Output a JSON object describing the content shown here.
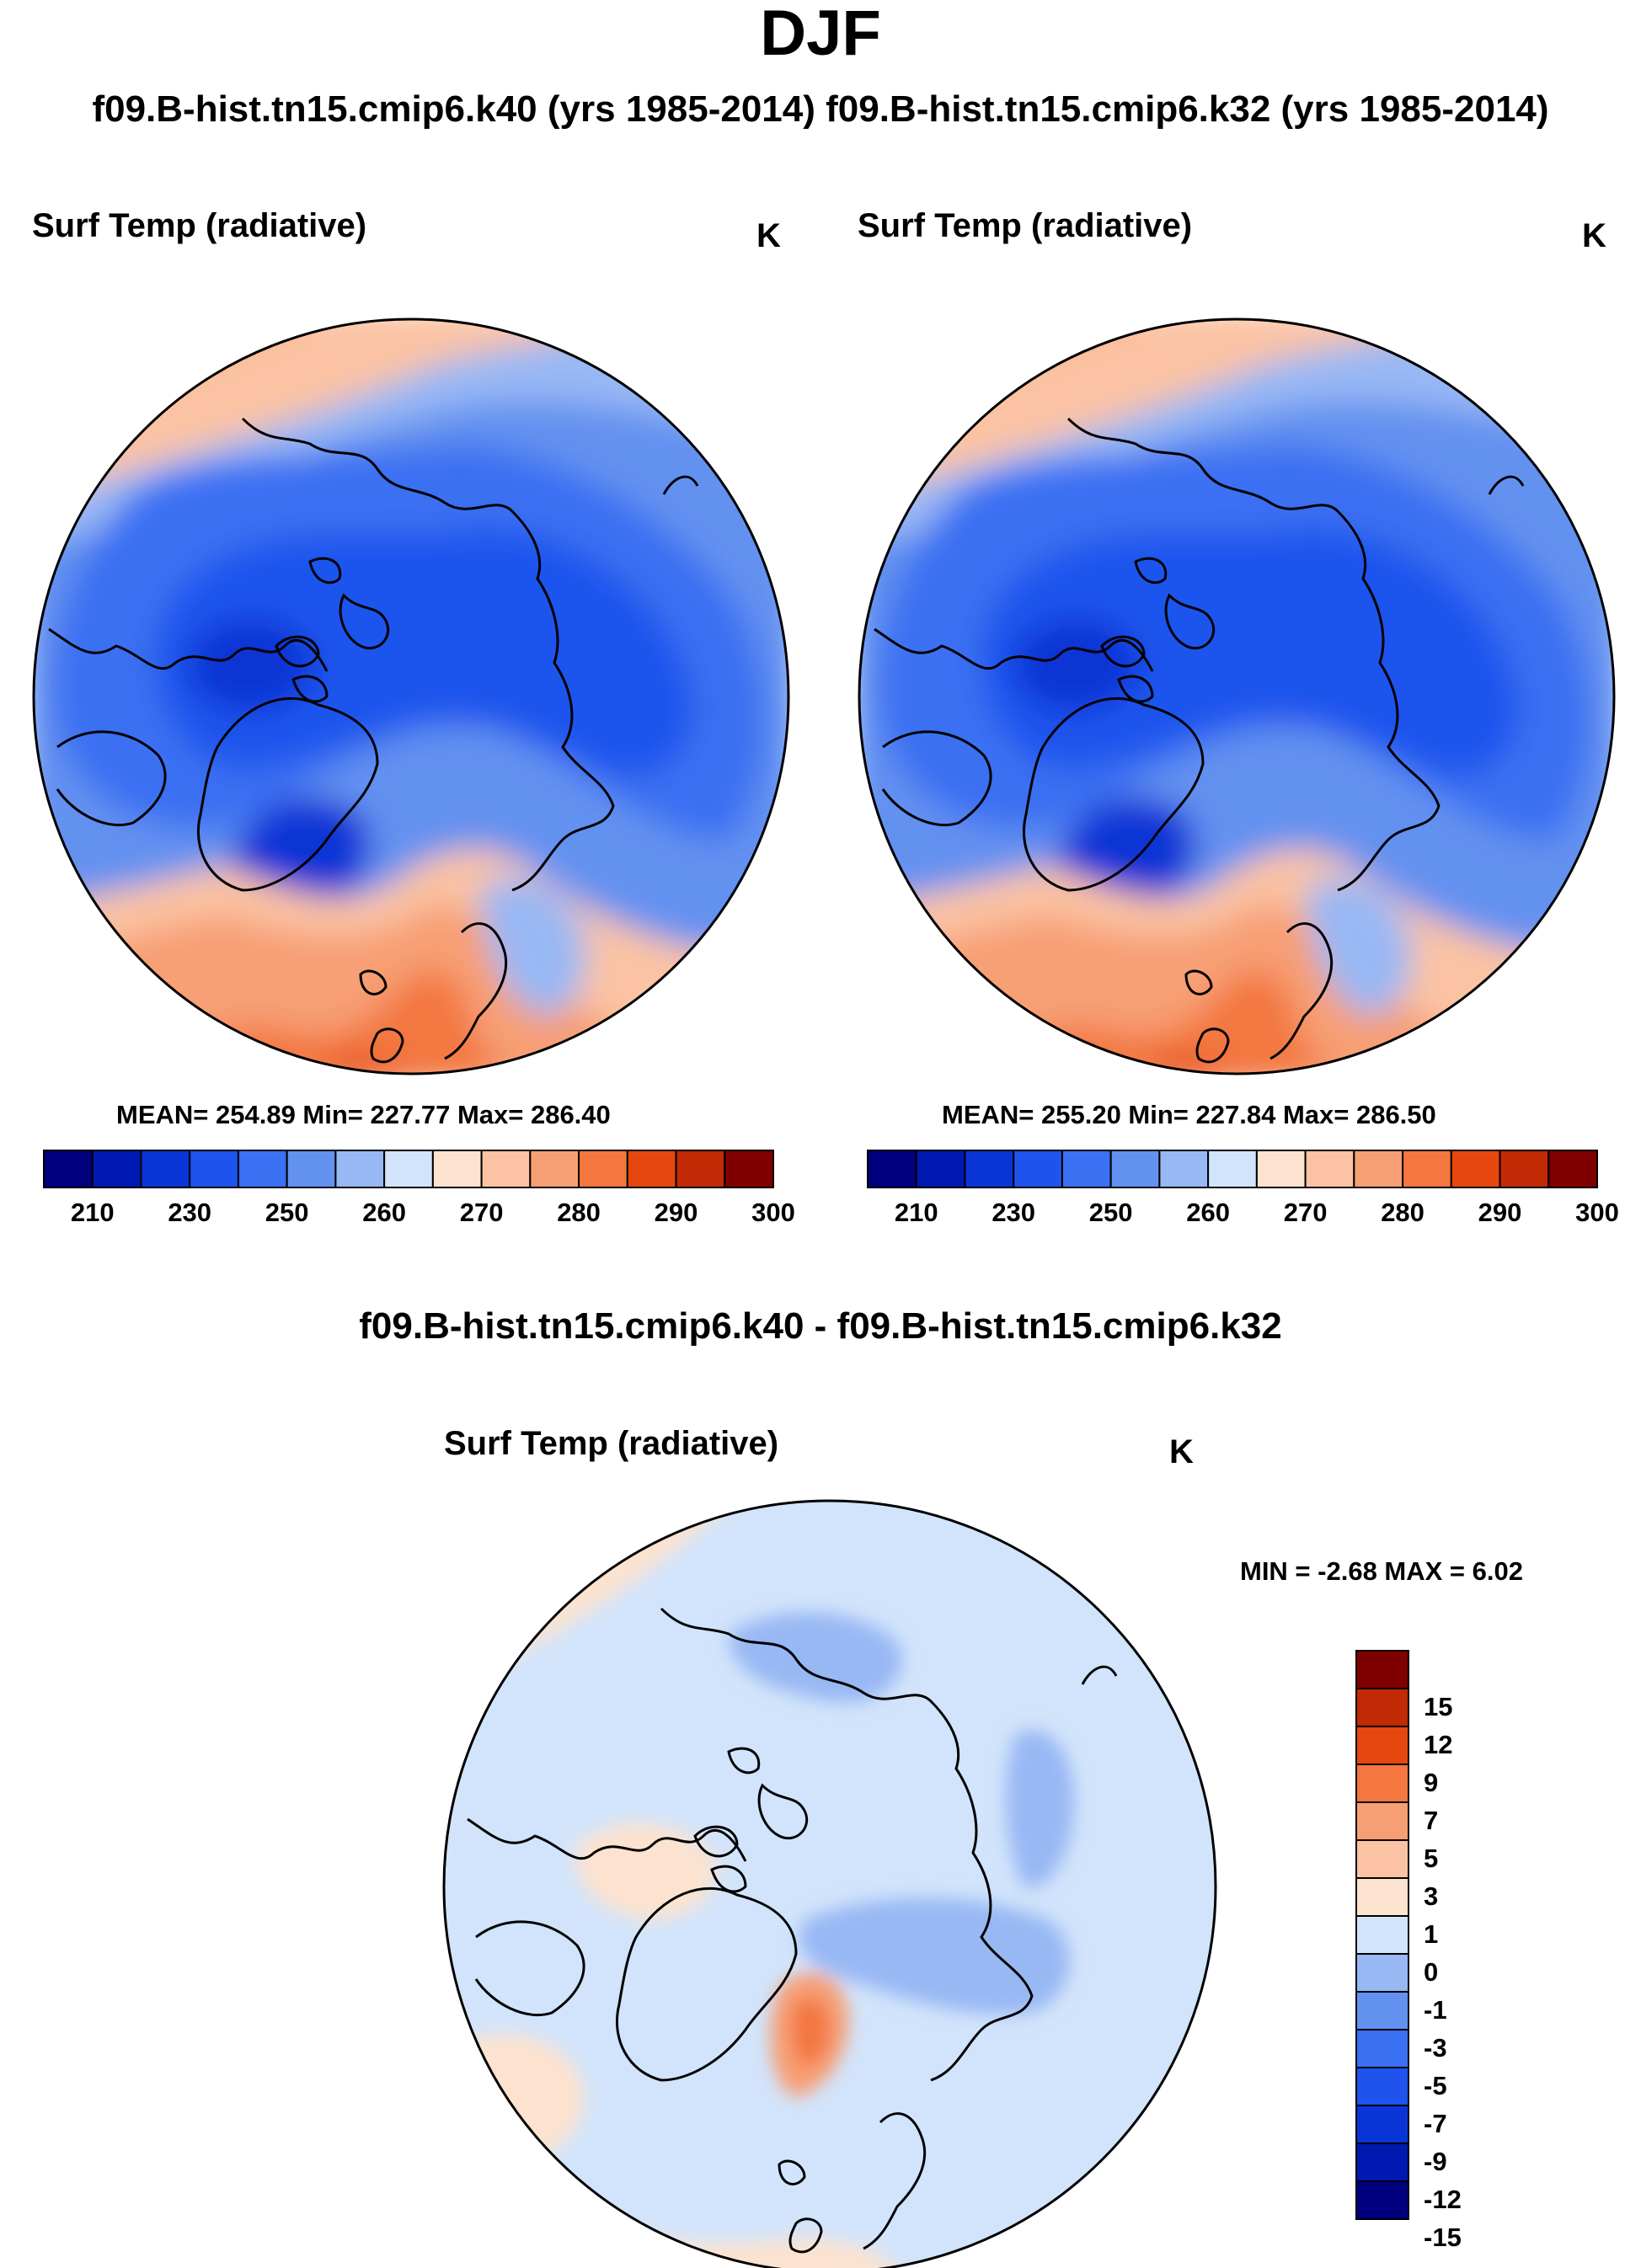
{
  "figure": {
    "title": "DJF",
    "case_header": "f09.B-hist.tn15.cmip6.k40 (yrs 1985-2014) f09.B-hist.tn15.cmip6.k32 (yrs 1985-2014)",
    "difference_title": "f09.B-hist.tn15.cmip6.k40 - f09.B-hist.tn15.cmip6.k32"
  },
  "panels": {
    "left": {
      "variable": "Surf Temp (radiative)",
      "units": "K",
      "stats": "MEAN= 254.89  Min= 227.77  Max= 286.40",
      "mean": 254.89,
      "min": 227.77,
      "max": 286.4
    },
    "right": {
      "variable": "Surf Temp (radiative)",
      "units": "K",
      "stats": "MEAN= 255.20  Min= 227.84  Max= 286.50",
      "mean": 255.2,
      "min": 227.84,
      "max": 286.5
    },
    "diff": {
      "variable": "Surf Temp (radiative)",
      "units": "K",
      "stats": "MIN =  -2.68 MAX =    6.02",
      "min": -2.68,
      "max": 6.02
    }
  },
  "abs_colorbar": {
    "colors": [
      "#00007f",
      "#0019b0",
      "#0a35d6",
      "#1e54ed",
      "#3a70f2",
      "#6391f0",
      "#98b8f4",
      "#d2e4fb",
      "#fde3cf",
      "#fbc3a3",
      "#f79f74",
      "#f3773f",
      "#e6470e",
      "#c22a06",
      "#7f0000"
    ],
    "tick_labels": [
      "210",
      "230",
      "250",
      "260",
      "270",
      "280",
      "290",
      "300"
    ]
  },
  "diff_colorbar": {
    "colors": [
      "#7f0000",
      "#c22a06",
      "#e6470e",
      "#f3773f",
      "#f79f74",
      "#fbc3a3",
      "#fde3cf",
      "#d2e4fb",
      "#98b8f4",
      "#6391f0",
      "#3a70f2",
      "#1e54ed",
      "#0a35d6",
      "#0019b0",
      "#00007f"
    ],
    "tick_labels": [
      "15",
      "12",
      "9",
      "7",
      "5",
      "3",
      "1",
      "0",
      "-1",
      "-3",
      "-5",
      "-7",
      "-9",
      "-12",
      "-15"
    ]
  },
  "chart_data": [
    {
      "type": "heatmap",
      "title": "Surf Temp (radiative)",
      "units": "K",
      "projection": "north polar stereographic",
      "season": "DJF",
      "case": "f09.B-hist.tn15.cmip6.k40 (yrs 1985-2014)",
      "mean": 254.89,
      "min": 227.77,
      "max": 286.4,
      "contour_levels": [
        210,
        220,
        230,
        240,
        250,
        255,
        260,
        265,
        270,
        275,
        280,
        285,
        290,
        295,
        300
      ]
    },
    {
      "type": "heatmap",
      "title": "Surf Temp (radiative)",
      "units": "K",
      "projection": "north polar stereographic",
      "season": "DJF",
      "case": "f09.B-hist.tn15.cmip6.k32 (yrs 1985-2014)",
      "mean": 255.2,
      "min": 227.84,
      "max": 286.5,
      "contour_levels": [
        210,
        220,
        230,
        240,
        250,
        255,
        260,
        265,
        270,
        275,
        280,
        285,
        290,
        295,
        300
      ]
    },
    {
      "type": "heatmap",
      "title": "Surf Temp (radiative)",
      "units": "K",
      "projection": "north polar stereographic",
      "season": "DJF",
      "case": "f09.B-hist.tn15.cmip6.k40 - f09.B-hist.tn15.cmip6.k32",
      "min": -2.68,
      "max": 6.02,
      "contour_levels": [
        -15,
        -12,
        -9,
        -7,
        -5,
        -3,
        -1,
        0,
        1,
        3,
        5,
        7,
        9,
        12,
        15
      ]
    }
  ]
}
